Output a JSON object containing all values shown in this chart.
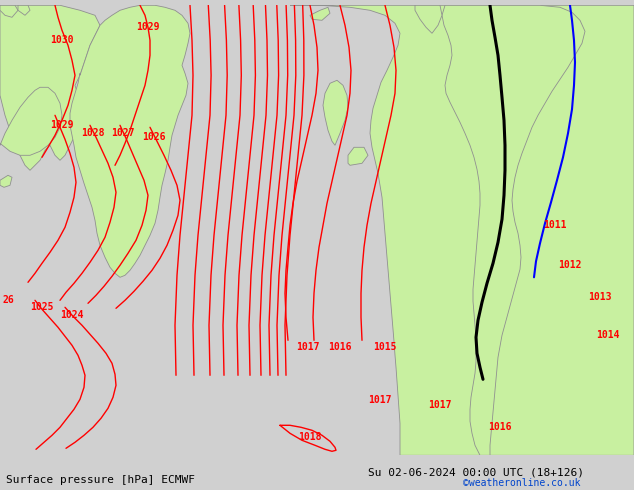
{
  "title_left": "Surface pressure [hPa] ECMWF",
  "title_right": "Su 02-06-2024 00:00 UTC (18+126)",
  "credit": "©weatheronline.co.uk",
  "sea_color": "#d0d0d0",
  "land_color": "#c8f0a0",
  "coast_color": "#909090",
  "isobar_color": "#ff0000",
  "blue_line_color": "#0000ff",
  "black_line_color": "#000000",
  "font_size_labels": 7,
  "font_size_title": 8,
  "isobar_linewidth": 1.0,
  "bottom_text_color": "#000000",
  "credit_color": "#0044cc"
}
